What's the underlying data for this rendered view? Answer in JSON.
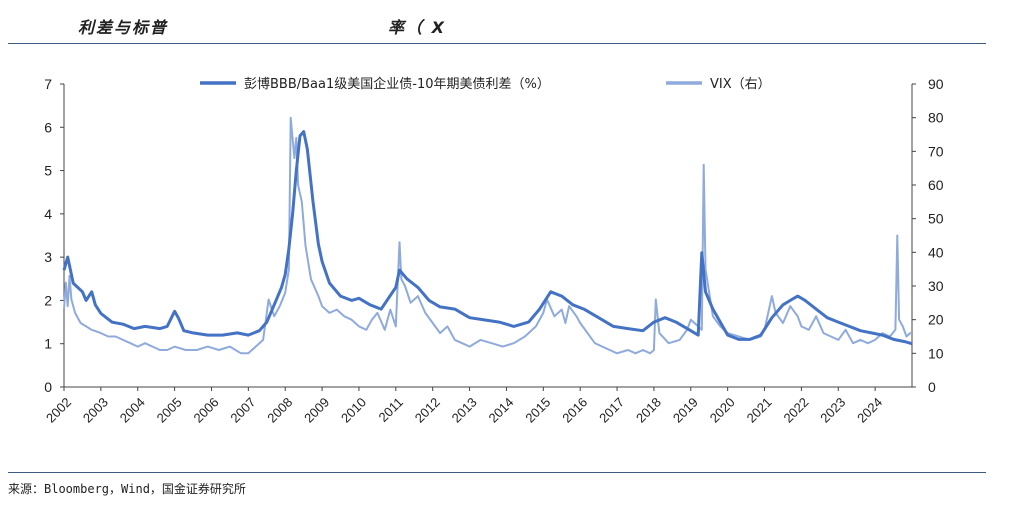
{
  "header": {
    "left_title": "利差与标普",
    "mid_title": "率（    X"
  },
  "source": "来源：Bloomberg，Wind，国金证券研究所",
  "colors": {
    "spread": "#4472c4",
    "vix": "#8faadc",
    "rule": "#3d5a80"
  },
  "chart_data": {
    "type": "line",
    "x_tick_labels": [
      "2002",
      "2003",
      "2004",
      "2005",
      "2006",
      "2007",
      "2008",
      "2009",
      "2010",
      "2011",
      "2012",
      "2013",
      "2014",
      "2015",
      "2016",
      "2017",
      "2018",
      "2019",
      "2020",
      "2021",
      "2022",
      "2023",
      "2024"
    ],
    "xlim": [
      2002,
      2025
    ],
    "y_left": {
      "ticks": [
        0,
        1,
        2,
        3,
        4,
        5,
        6,
        7
      ],
      "ylim": [
        0,
        7
      ]
    },
    "y_right": {
      "ticks": [
        0,
        10,
        20,
        30,
        40,
        50,
        60,
        70,
        80,
        90
      ],
      "ylim": [
        0,
        90
      ]
    },
    "legend_placement": "top",
    "series": [
      {
        "name": "彭博BBB/Baa1级美国企业债-10年期美债利差（%）",
        "axis": "left",
        "points": [
          [
            2002.0,
            2.7
          ],
          [
            2002.1,
            3.0
          ],
          [
            2002.25,
            2.4
          ],
          [
            2002.5,
            2.2
          ],
          [
            2002.6,
            2.0
          ],
          [
            2002.75,
            2.2
          ],
          [
            2002.85,
            1.9
          ],
          [
            2003.0,
            1.7
          ],
          [
            2003.3,
            1.5
          ],
          [
            2003.6,
            1.45
          ],
          [
            2003.9,
            1.35
          ],
          [
            2004.2,
            1.4
          ],
          [
            2004.6,
            1.35
          ],
          [
            2004.8,
            1.4
          ],
          [
            2005.0,
            1.75
          ],
          [
            2005.1,
            1.6
          ],
          [
            2005.25,
            1.3
          ],
          [
            2005.5,
            1.25
          ],
          [
            2005.9,
            1.2
          ],
          [
            2006.3,
            1.2
          ],
          [
            2006.7,
            1.25
          ],
          [
            2007.0,
            1.2
          ],
          [
            2007.3,
            1.3
          ],
          [
            2007.5,
            1.5
          ],
          [
            2007.7,
            1.9
          ],
          [
            2007.9,
            2.3
          ],
          [
            2008.0,
            2.6
          ],
          [
            2008.1,
            3.2
          ],
          [
            2008.2,
            4.0
          ],
          [
            2008.3,
            5.0
          ],
          [
            2008.4,
            5.8
          ],
          [
            2008.5,
            5.9
          ],
          [
            2008.6,
            5.5
          ],
          [
            2008.75,
            4.3
          ],
          [
            2008.9,
            3.3
          ],
          [
            2009.0,
            2.9
          ],
          [
            2009.2,
            2.4
          ],
          [
            2009.5,
            2.1
          ],
          [
            2009.8,
            2.0
          ],
          [
            2010.0,
            2.05
          ],
          [
            2010.3,
            1.9
          ],
          [
            2010.6,
            1.8
          ],
          [
            2011.0,
            2.3
          ],
          [
            2011.1,
            2.7
          ],
          [
            2011.3,
            2.5
          ],
          [
            2011.6,
            2.3
          ],
          [
            2011.9,
            2.0
          ],
          [
            2012.2,
            1.85
          ],
          [
            2012.6,
            1.8
          ],
          [
            2013.0,
            1.6
          ],
          [
            2013.4,
            1.55
          ],
          [
            2013.8,
            1.5
          ],
          [
            2014.2,
            1.4
          ],
          [
            2014.6,
            1.5
          ],
          [
            2014.9,
            1.8
          ],
          [
            2015.2,
            2.2
          ],
          [
            2015.5,
            2.1
          ],
          [
            2015.8,
            1.9
          ],
          [
            2016.1,
            1.8
          ],
          [
            2016.5,
            1.6
          ],
          [
            2016.9,
            1.4
          ],
          [
            2017.3,
            1.35
          ],
          [
            2017.7,
            1.3
          ],
          [
            2018.0,
            1.5
          ],
          [
            2018.3,
            1.6
          ],
          [
            2018.6,
            1.5
          ],
          [
            2018.9,
            1.35
          ],
          [
            2019.1,
            1.25
          ],
          [
            2019.2,
            1.2
          ],
          [
            2019.3,
            3.1
          ],
          [
            2019.4,
            2.2
          ],
          [
            2019.6,
            1.8
          ],
          [
            2019.8,
            1.5
          ],
          [
            2020.0,
            1.2
          ],
          [
            2020.3,
            1.1
          ],
          [
            2020.6,
            1.1
          ],
          [
            2020.9,
            1.2
          ],
          [
            2021.2,
            1.6
          ],
          [
            2021.5,
            1.9
          ],
          [
            2021.7,
            2.0
          ],
          [
            2021.9,
            2.1
          ],
          [
            2022.1,
            2.0
          ],
          [
            2022.4,
            1.8
          ],
          [
            2022.7,
            1.6
          ],
          [
            2023.0,
            1.5
          ],
          [
            2023.3,
            1.4
          ],
          [
            2023.6,
            1.3
          ],
          [
            2023.9,
            1.25
          ],
          [
            2024.2,
            1.2
          ],
          [
            2024.5,
            1.1
          ],
          [
            2024.8,
            1.05
          ],
          [
            2025.0,
            1.0
          ]
        ]
      },
      {
        "name": "VIX（右）",
        "axis": "right",
        "points": [
          [
            2002.0,
            23
          ],
          [
            2002.05,
            31
          ],
          [
            2002.1,
            24
          ],
          [
            2002.15,
            33
          ],
          [
            2002.2,
            26
          ],
          [
            2002.3,
            22
          ],
          [
            2002.45,
            19
          ],
          [
            2002.6,
            18
          ],
          [
            2002.75,
            17
          ],
          [
            2003.0,
            16
          ],
          [
            2003.2,
            15
          ],
          [
            2003.4,
            15
          ],
          [
            2003.6,
            14
          ],
          [
            2003.8,
            13
          ],
          [
            2004.0,
            12
          ],
          [
            2004.2,
            13
          ],
          [
            2004.4,
            12
          ],
          [
            2004.6,
            11
          ],
          [
            2004.8,
            11
          ],
          [
            2005.0,
            12
          ],
          [
            2005.3,
            11
          ],
          [
            2005.6,
            11
          ],
          [
            2005.9,
            12
          ],
          [
            2006.2,
            11
          ],
          [
            2006.5,
            12
          ],
          [
            2006.8,
            10
          ],
          [
            2007.0,
            10
          ],
          [
            2007.2,
            12
          ],
          [
            2007.4,
            14
          ],
          [
            2007.55,
            26
          ],
          [
            2007.7,
            21
          ],
          [
            2007.85,
            24
          ],
          [
            2008.0,
            28
          ],
          [
            2008.1,
            35
          ],
          [
            2008.15,
            80
          ],
          [
            2008.25,
            68
          ],
          [
            2008.3,
            74
          ],
          [
            2008.35,
            60
          ],
          [
            2008.45,
            55
          ],
          [
            2008.55,
            42
          ],
          [
            2008.7,
            32
          ],
          [
            2008.9,
            27
          ],
          [
            2009.0,
            24
          ],
          [
            2009.2,
            22
          ],
          [
            2009.4,
            23
          ],
          [
            2009.6,
            21
          ],
          [
            2009.8,
            20
          ],
          [
            2010.0,
            18
          ],
          [
            2010.2,
            17
          ],
          [
            2010.35,
            20
          ],
          [
            2010.5,
            22
          ],
          [
            2010.7,
            17
          ],
          [
            2010.85,
            23
          ],
          [
            2011.0,
            18
          ],
          [
            2011.1,
            43
          ],
          [
            2011.15,
            32
          ],
          [
            2011.25,
            30
          ],
          [
            2011.4,
            25
          ],
          [
            2011.6,
            27
          ],
          [
            2011.8,
            22
          ],
          [
            2012.0,
            19
          ],
          [
            2012.2,
            16
          ],
          [
            2012.4,
            18
          ],
          [
            2012.6,
            14
          ],
          [
            2012.8,
            13
          ],
          [
            2013.0,
            12
          ],
          [
            2013.3,
            14
          ],
          [
            2013.6,
            13
          ],
          [
            2013.9,
            12
          ],
          [
            2014.2,
            13
          ],
          [
            2014.5,
            15
          ],
          [
            2014.8,
            18
          ],
          [
            2015.0,
            22
          ],
          [
            2015.1,
            26
          ],
          [
            2015.3,
            21
          ],
          [
            2015.5,
            23
          ],
          [
            2015.6,
            19
          ],
          [
            2015.7,
            24
          ],
          [
            2015.9,
            21
          ],
          [
            2016.0,
            19
          ],
          [
            2016.2,
            16
          ],
          [
            2016.4,
            13
          ],
          [
            2016.6,
            12
          ],
          [
            2016.8,
            11
          ],
          [
            2017.0,
            10
          ],
          [
            2017.3,
            11
          ],
          [
            2017.5,
            10
          ],
          [
            2017.7,
            11
          ],
          [
            2017.9,
            10
          ],
          [
            2018.0,
            11
          ],
          [
            2018.05,
            26
          ],
          [
            2018.15,
            16
          ],
          [
            2018.4,
            13
          ],
          [
            2018.7,
            14
          ],
          [
            2018.9,
            17
          ],
          [
            2019.0,
            20
          ],
          [
            2019.2,
            18
          ],
          [
            2019.3,
            17
          ],
          [
            2019.35,
            66
          ],
          [
            2019.4,
            35
          ],
          [
            2019.5,
            28
          ],
          [
            2019.6,
            21
          ],
          [
            2019.8,
            18
          ],
          [
            2020.0,
            16
          ],
          [
            2020.3,
            15
          ],
          [
            2020.6,
            14
          ],
          [
            2020.9,
            15
          ],
          [
            2021.0,
            17
          ],
          [
            2021.2,
            27
          ],
          [
            2021.3,
            22
          ],
          [
            2021.5,
            19
          ],
          [
            2021.7,
            24
          ],
          [
            2021.9,
            21
          ],
          [
            2022.0,
            18
          ],
          [
            2022.2,
            17
          ],
          [
            2022.4,
            21
          ],
          [
            2022.6,
            16
          ],
          [
            2022.8,
            15
          ],
          [
            2023.0,
            14
          ],
          [
            2023.2,
            17
          ],
          [
            2023.4,
            13
          ],
          [
            2023.6,
            14
          ],
          [
            2023.8,
            13
          ],
          [
            2024.0,
            14
          ],
          [
            2024.2,
            16
          ],
          [
            2024.4,
            15
          ],
          [
            2024.55,
            17
          ],
          [
            2024.6,
            45
          ],
          [
            2024.65,
            20
          ],
          [
            2024.75,
            18
          ],
          [
            2024.85,
            15
          ],
          [
            2024.95,
            16
          ],
          [
            2025.0,
            16
          ]
        ]
      }
    ]
  }
}
